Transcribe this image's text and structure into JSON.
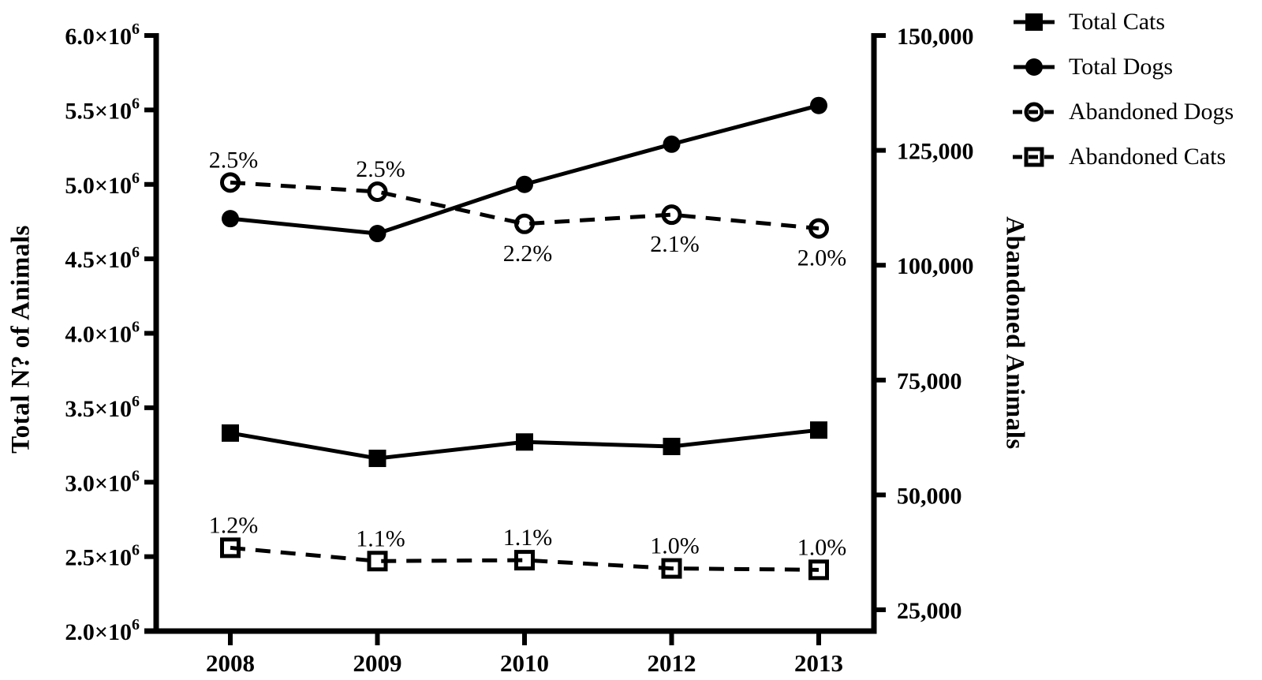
{
  "chart_data": {
    "type": "line",
    "title": "",
    "categories": [
      "2008",
      "2009",
      "2010",
      "2012",
      "2013"
    ],
    "xlabel": "",
    "grid": false,
    "legend_position": "top-right",
    "colors": {
      "foreground": "#000000",
      "background": "#ffffff"
    },
    "axes": {
      "left": {
        "label": "Total N? of Animals",
        "min": 2000000,
        "max": 6000000,
        "ticks": [
          {
            "value": 6000000,
            "label": "6.0×10^6"
          },
          {
            "value": 5500000,
            "label": "5.5×10^6"
          },
          {
            "value": 5000000,
            "label": "5.0×10^6"
          },
          {
            "value": 4500000,
            "label": "4.5×10^6"
          },
          {
            "value": 4000000,
            "label": "4.0×10^6"
          },
          {
            "value": 3500000,
            "label": "3.5×10^6"
          },
          {
            "value": 3000000,
            "label": "3.0×10^6"
          },
          {
            "value": 2500000,
            "label": "2.5×10^6"
          },
          {
            "value": 2000000,
            "label": "2.0×10^6"
          }
        ]
      },
      "right": {
        "label": "Abandoned Animals",
        "min": 25000,
        "max": 150000,
        "ticks": [
          {
            "value": 150000,
            "label": "150,000"
          },
          {
            "value": 125000,
            "label": "125,000"
          },
          {
            "value": 100000,
            "label": "100,000"
          },
          {
            "value": 75000,
            "label": "75,000"
          },
          {
            "value": 50000,
            "label": "50,000"
          },
          {
            "value": 25000,
            "label": "25,000"
          }
        ]
      }
    },
    "series": [
      {
        "name": "Total Cats",
        "axis": "left",
        "marker": "filled-square",
        "line": "solid",
        "values": [
          3330000,
          3160000,
          3270000,
          3240000,
          3350000
        ]
      },
      {
        "name": "Total Dogs",
        "axis": "left",
        "marker": "filled-circle",
        "line": "solid",
        "values": [
          4770000,
          4670000,
          5000000,
          5270000,
          5530000
        ]
      },
      {
        "name": "Abandoned Dogs",
        "axis": "right",
        "marker": "open-circle",
        "line": "dashed",
        "values": [
          118000,
          116000,
          109000,
          111000,
          108000
        ],
        "point_labels": [
          {
            "text": "2.5%",
            "pos": "above"
          },
          {
            "text": "2.5%",
            "pos": "above"
          },
          {
            "text": "2.2%",
            "pos": "below"
          },
          {
            "text": "2.1%",
            "pos": "below"
          },
          {
            "text": "2.0%",
            "pos": "below"
          }
        ]
      },
      {
        "name": "Abandoned Cats",
        "axis": "right",
        "marker": "open-square",
        "line": "dashed",
        "values": [
          38500,
          35600,
          35800,
          34000,
          33700
        ],
        "point_labels": [
          {
            "text": "1.2%",
            "pos": "above"
          },
          {
            "text": "1.1%",
            "pos": "above"
          },
          {
            "text": "1.1%",
            "pos": "above"
          },
          {
            "text": "1.0%",
            "pos": "above"
          },
          {
            "text": "1.0%",
            "pos": "above"
          }
        ]
      }
    ]
  }
}
